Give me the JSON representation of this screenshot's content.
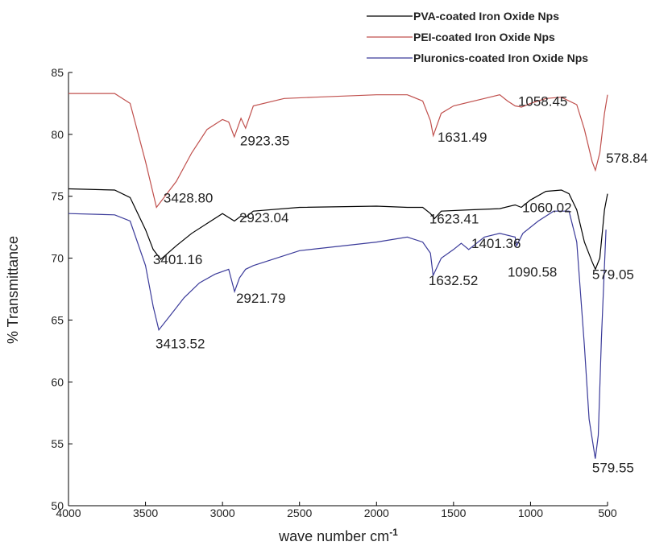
{
  "chart_data": {
    "type": "line",
    "x_label": "wave number cm",
    "x_label_sup": "-1",
    "y_label": "% Transmittance",
    "xlim": [
      4000,
      500
    ],
    "xticks": [
      4000,
      3500,
      3000,
      2500,
      2000,
      1500,
      1000,
      500
    ],
    "ylim": [
      50,
      85
    ],
    "yticks": [
      50,
      55,
      60,
      65,
      70,
      75,
      80,
      85
    ],
    "legend": "upper right",
    "series": [
      {
        "name": "PVA-coated Iron Oxide Nps",
        "color": "#000000",
        "x": [
          4000,
          3700,
          3600,
          3500,
          3450,
          3401.16,
          3300,
          3200,
          3100,
          3000,
          2923.04,
          2880,
          2850,
          2800,
          2500,
          2000,
          1800,
          1700,
          1650,
          1623.41,
          1580,
          1400,
          1200,
          1100,
          1060.02,
          1000,
          900,
          800,
          750,
          700,
          650,
          600,
          579.05,
          550,
          520,
          500
        ],
        "values": [
          75.6,
          75.5,
          74.9,
          72.3,
          70.7,
          69.9,
          71.0,
          72.0,
          72.8,
          73.6,
          73.0,
          73.4,
          73.3,
          73.8,
          74.1,
          74.2,
          74.1,
          74.1,
          73.6,
          73.2,
          73.8,
          73.9,
          74.0,
          74.3,
          74.1,
          74.7,
          75.4,
          75.5,
          75.2,
          73.9,
          71.3,
          69.7,
          69.1,
          70.0,
          73.9,
          75.2
        ]
      },
      {
        "name": "PEI-coated Iron Oxide Nps",
        "color": "#c0504d",
        "x": [
          4000,
          3700,
          3600,
          3500,
          3428.8,
          3300,
          3200,
          3100,
          3000,
          2960,
          2923.35,
          2880,
          2850,
          2800,
          2600,
          2400,
          2000,
          1800,
          1700,
          1650,
          1631.49,
          1580,
          1500,
          1300,
          1200,
          1150,
          1100,
          1058.45,
          1000,
          900,
          800,
          700,
          650,
          600,
          578.84,
          550,
          520,
          500
        ],
        "values": [
          83.3,
          83.3,
          82.5,
          77.8,
          74.1,
          76.2,
          78.5,
          80.4,
          81.2,
          81.0,
          79.8,
          81.3,
          80.5,
          82.3,
          82.9,
          83.0,
          83.2,
          83.2,
          82.7,
          81.1,
          79.9,
          81.7,
          82.3,
          82.9,
          83.2,
          82.7,
          82.3,
          82.2,
          82.5,
          82.9,
          83.0,
          82.4,
          80.4,
          77.8,
          77.1,
          78.5,
          81.7,
          83.2
        ]
      },
      {
        "name": "Pluronics-coated Iron Oxide Nps",
        "color": "#3b3b9a",
        "x": [
          4000,
          3700,
          3600,
          3500,
          3450,
          3413.52,
          3350,
          3250,
          3150,
          3050,
          2960,
          2921.79,
          2890,
          2850,
          2800,
          2500,
          2000,
          1800,
          1700,
          1650,
          1632.52,
          1580,
          1500,
          1450,
          1401.36,
          1300,
          1200,
          1100,
          1090.58,
          1050,
          950,
          850,
          750,
          700,
          650,
          620,
          579.55,
          560,
          540,
          520,
          510
        ],
        "values": [
          73.6,
          73.5,
          73.0,
          69.4,
          66.1,
          64.2,
          65.2,
          66.8,
          68.0,
          68.7,
          69.1,
          67.3,
          68.4,
          69.1,
          69.4,
          70.6,
          71.3,
          71.7,
          71.3,
          70.4,
          68.6,
          70.0,
          70.7,
          71.2,
          70.7,
          71.7,
          72.0,
          71.7,
          71.0,
          72.0,
          73.0,
          73.8,
          73.8,
          71.3,
          62.9,
          57.0,
          53.8,
          55.7,
          63.5,
          69.4,
          72.3
        ]
      }
    ],
    "annotations": [
      {
        "text": "2923.35",
        "x": 2886,
        "y": 79.5
      },
      {
        "text": "1631.49",
        "x": 1604,
        "y": 79.8
      },
      {
        "text": "1058.45",
        "x": 1081,
        "y": 82.7
      },
      {
        "text": "578.84",
        "x": 510,
        "y": 78.1
      },
      {
        "text": "3428.80",
        "x": 3383,
        "y": 74.9
      },
      {
        "text": "2923.04",
        "x": 2891,
        "y": 73.3
      },
      {
        "text": "1623.41",
        "x": 1657,
        "y": 73.2
      },
      {
        "text": "1060.02",
        "x": 1054,
        "y": 74.1
      },
      {
        "text": "3401.16",
        "x": 3451,
        "y": 69.9
      },
      {
        "text": "1401.36",
        "x": 1384,
        "y": 71.2
      },
      {
        "text": "1090.58",
        "x": 1149,
        "y": 68.9
      },
      {
        "text": "579.05",
        "x": 600,
        "y": 68.7
      },
      {
        "text": "2921.79",
        "x": 2912,
        "y": 66.8
      },
      {
        "text": "1632.52",
        "x": 1662,
        "y": 68.2
      },
      {
        "text": "3413.52",
        "x": 3435,
        "y": 63.1
      },
      {
        "text": "579.55",
        "x": 600,
        "y": 53.1
      }
    ]
  }
}
